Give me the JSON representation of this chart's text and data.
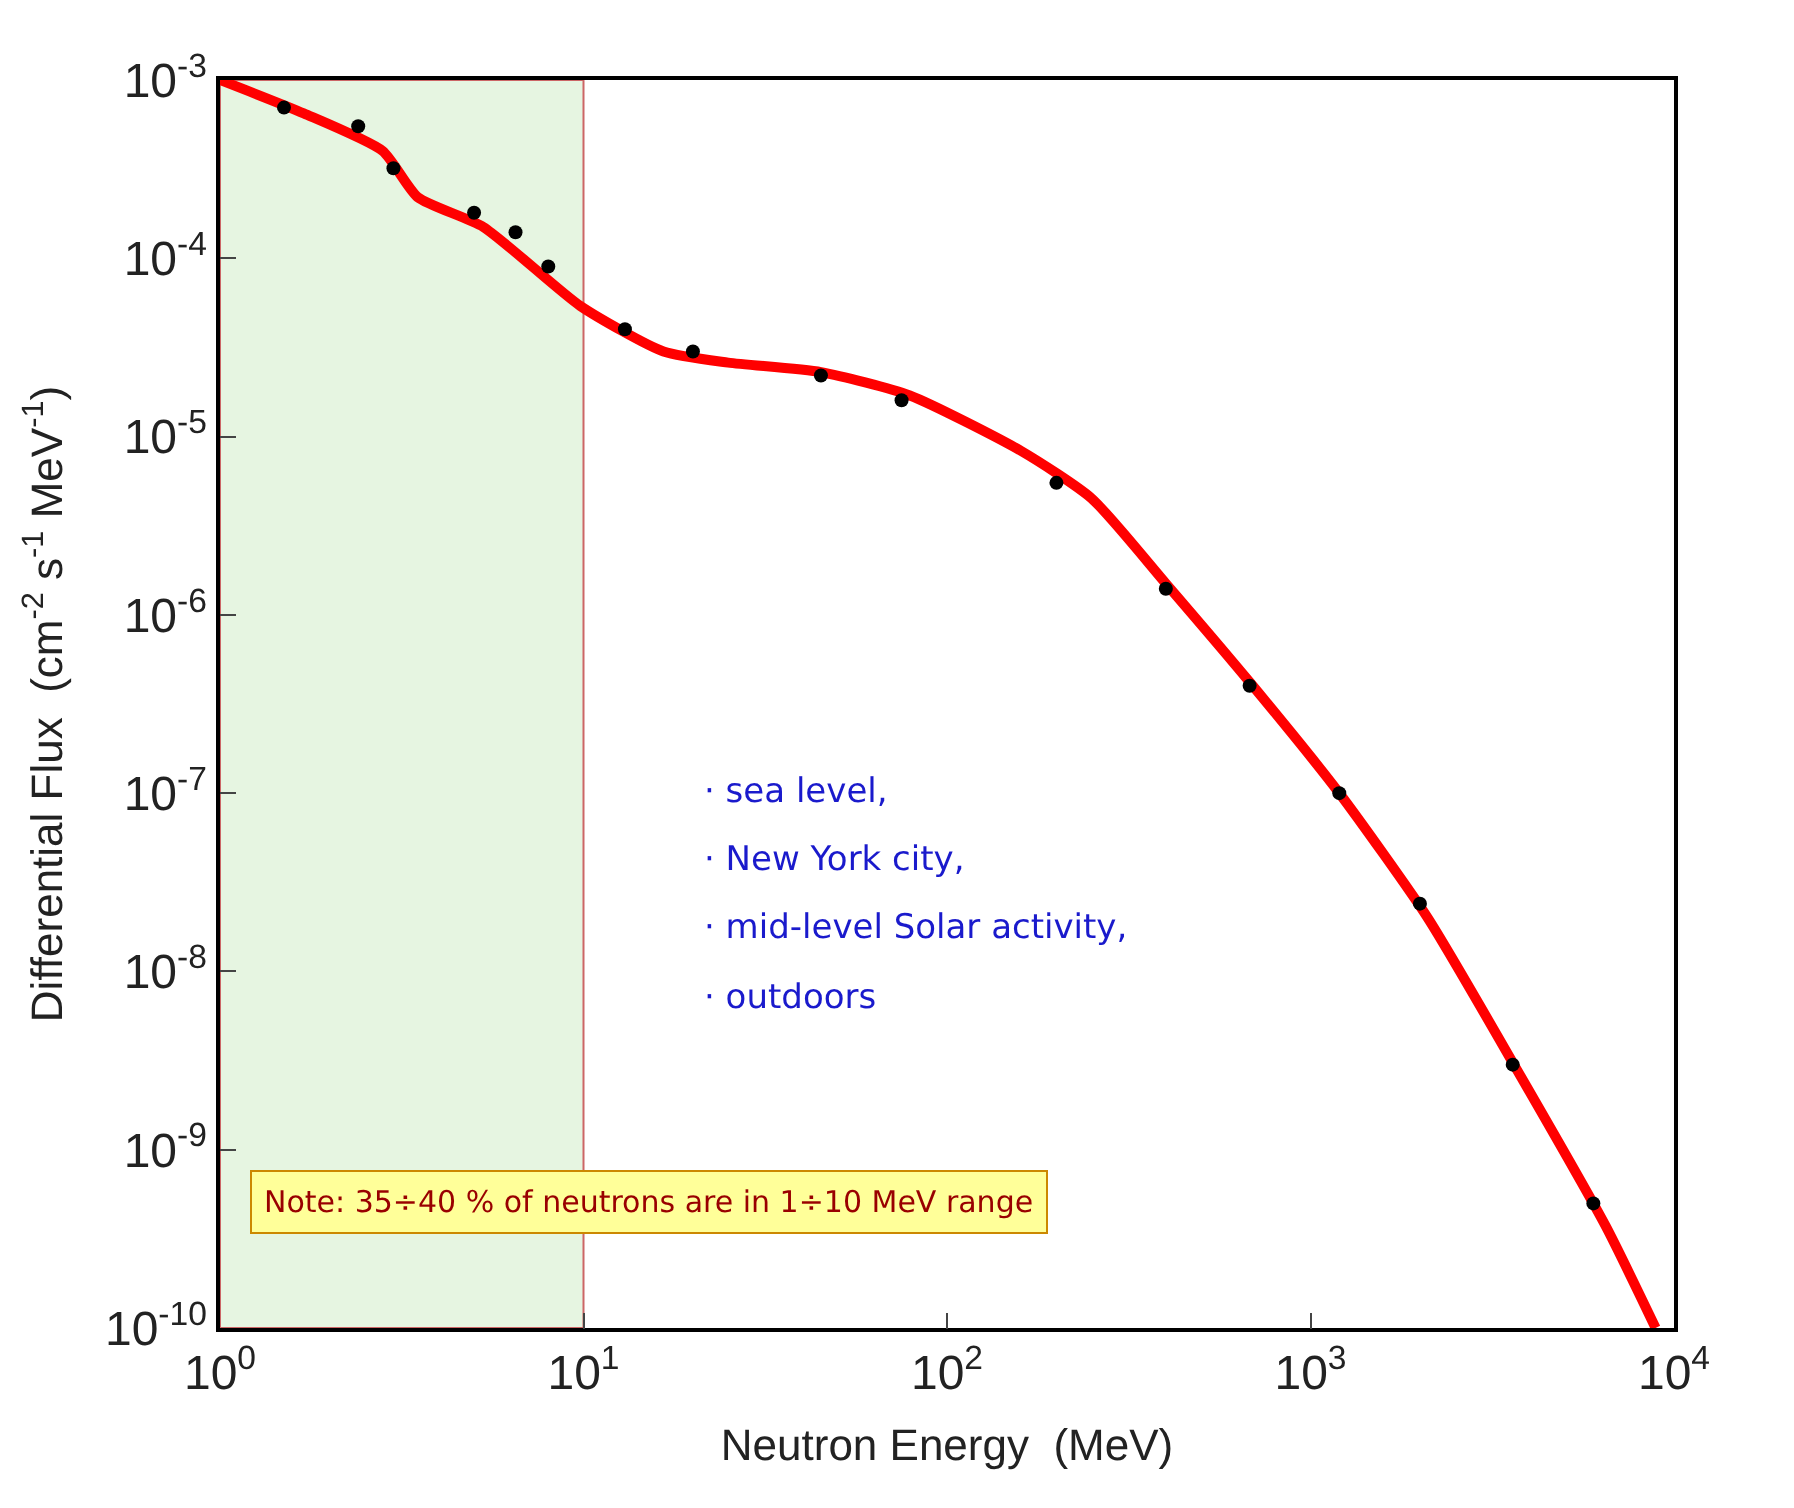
{
  "chart_data": {
    "type": "line",
    "xlabel": "Neutron Energy  (MeV)",
    "ylabel": "Differential Flux  (cm$^{-2}$ s$^{-1}$ MeV$^{-1}$)",
    "log": "xy",
    "grid": false,
    "xlim": [
      1,
      10000
    ],
    "xticks": [
      {
        "value": 1,
        "label": "10$^{0}$"
      },
      {
        "value": 10,
        "label": "10$^{1}$"
      },
      {
        "value": 100,
        "label": "10$^{2}$"
      },
      {
        "value": 1000,
        "label": "10$^{3}$"
      },
      {
        "value": 10000,
        "label": "10$^{4}$"
      }
    ],
    "ylim": [
      1e-10,
      0.001
    ],
    "yticks": [
      {
        "value": 1e-10,
        "label": "10$^{-10}$"
      },
      {
        "value": 1e-09,
        "label": "10$^{-9}$"
      },
      {
        "value": 1e-08,
        "label": "10$^{-8}$"
      },
      {
        "value": 1e-07,
        "label": "10$^{-7}$"
      },
      {
        "value": 1e-06,
        "label": "10$^{-6}$"
      },
      {
        "value": 1e-05,
        "label": "10$^{-5}$"
      },
      {
        "value": 0.0001,
        "label": "10$^{-4}$"
      },
      {
        "value": 0.001,
        "label": "10$^{-3}$"
      }
    ],
    "series": [
      {
        "color": "#ff0000",
        "marker": "none",
        "x": [
          1,
          1.7,
          2.8,
          3.5,
          5.3,
          9.8,
          16.6,
          25,
          45,
          79,
          160,
          250,
          400,
          680,
          1200,
          2100,
          3700,
          6500,
          8900
        ],
        "values": [
          0.001,
          0.00065,
          0.0004,
          0.00022,
          0.00015,
          5.4e-05,
          3e-05,
          2.6e-05,
          2.3e-05,
          1.7e-05,
          8.3e-06,
          4.5e-06,
          1.5e-06,
          4.2e-07,
          1e-07,
          2e-08,
          2.8e-09,
          3.7e-10,
          1e-10
        ]
      },
      {
        "type": "scatter",
        "color": "#000000",
        "marker": "circle",
        "x": [
          1.5,
          2.4,
          3,
          5,
          6.5,
          8,
          13,
          20,
          45,
          75,
          200,
          400,
          680,
          1200,
          2000,
          3600,
          6000
        ],
        "values": [
          0.0007,
          0.00055,
          0.00032,
          0.00018,
          0.00014,
          9e-05,
          4e-05,
          3e-05,
          2.2e-05,
          1.6e-05,
          5.5e-06,
          1.4e-06,
          4e-07,
          1e-07,
          2.4e-08,
          3e-09,
          5e-10
        ]
      }
    ],
    "bands": [
      {
        "axis": "x",
        "from": 1,
        "to": 10,
        "color": "#e6f5e1"
      }
    ],
    "annotations": [
      "· sea level,",
      "· New York city,",
      "· mid-level Solar activity,",
      "· outdoors",
      "Note: 35÷40 % of neutrons are in 1÷10 MeV range"
    ]
  }
}
